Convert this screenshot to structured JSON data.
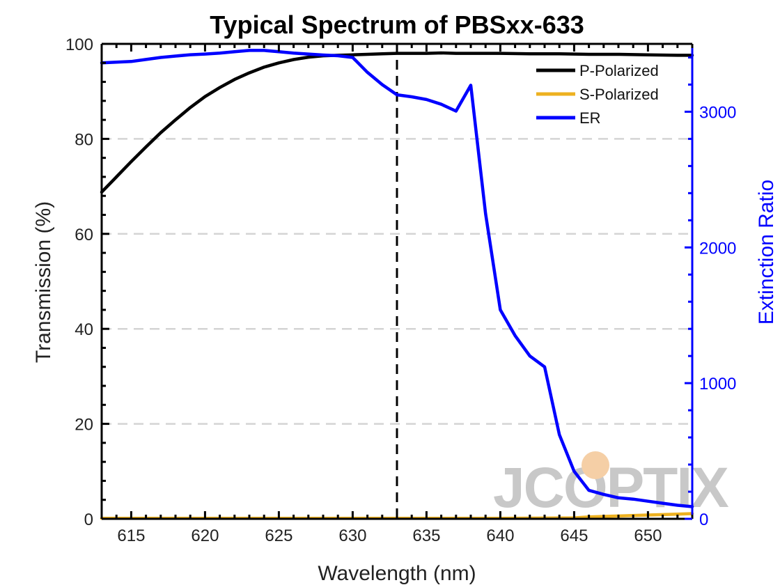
{
  "chart_data": {
    "type": "line",
    "title": "Typical Spectrum of PBSxx-633",
    "xlabel": "Wavelength (nm)",
    "ylabel": "Transmission (%)",
    "y2label": "Extinction Ratio",
    "xlim": [
      613,
      653
    ],
    "ylim": [
      0,
      100
    ],
    "y2lim": [
      0,
      3500
    ],
    "xticks": [
      615,
      620,
      625,
      630,
      635,
      640,
      645,
      650
    ],
    "yticks": [
      0,
      20,
      40,
      60,
      80,
      100
    ],
    "y2ticks": [
      0,
      1000,
      2000,
      3000
    ],
    "grid": "horizontal-dashed",
    "legend": "top-right",
    "vline_x": 633,
    "watermark": "JCOPTIX",
    "colors": {
      "p": "#000000",
      "s": "#edb120",
      "er": "#0000ff",
      "grid": "#d4d4d4",
      "watermark": "#c8c8c8",
      "watermark_dot": "#f5cfa6"
    },
    "series": [
      {
        "name": "P-Polarized",
        "axis": "left",
        "x": [
          613,
          614,
          615,
          616,
          617,
          618,
          619,
          620,
          621,
          622,
          623,
          624,
          625,
          626,
          627,
          628,
          629,
          630,
          631,
          632,
          633,
          634,
          635,
          636,
          637,
          638,
          640,
          642,
          644,
          646,
          648,
          650,
          652,
          653
        ],
        "values": [
          68.8,
          72.0,
          75.2,
          78.3,
          81.3,
          84.0,
          86.6,
          88.9,
          90.8,
          92.5,
          93.9,
          95.1,
          96.0,
          96.7,
          97.2,
          97.5,
          97.6,
          97.7,
          97.8,
          97.9,
          98.0,
          98.0,
          98.0,
          98.1,
          98.0,
          98.0,
          98.0,
          97.9,
          97.9,
          97.8,
          97.8,
          97.7,
          97.6,
          97.6
        ]
      },
      {
        "name": "S-Polarized",
        "axis": "left",
        "x": [
          613,
          620,
          630,
          640,
          645,
          646,
          648,
          650,
          652,
          653
        ],
        "values": [
          0.1,
          0.1,
          0.1,
          0.1,
          0.2,
          0.4,
          0.6,
          0.8,
          1.0,
          1.1
        ]
      },
      {
        "name": "ER",
        "axis": "right",
        "x": [
          613,
          614,
          615,
          616,
          617,
          618,
          619,
          620,
          621,
          622,
          623,
          624,
          625,
          626,
          627,
          628,
          629,
          630,
          631,
          632,
          633,
          634,
          635,
          636,
          637,
          638,
          639,
          640,
          641,
          642,
          643,
          644,
          645,
          646,
          647,
          648,
          649,
          650,
          651,
          652,
          653
        ],
        "values": [
          3360,
          3365,
          3370,
          3385,
          3400,
          3410,
          3420,
          3425,
          3432,
          3442,
          3452,
          3452,
          3442,
          3432,
          3425,
          3418,
          3413,
          3400,
          3290,
          3200,
          3125,
          3110,
          3090,
          3055,
          3005,
          3195,
          2250,
          1540,
          1350,
          1200,
          1120,
          620,
          350,
          210,
          180,
          155,
          145,
          130,
          115,
          100,
          90
        ]
      }
    ]
  }
}
